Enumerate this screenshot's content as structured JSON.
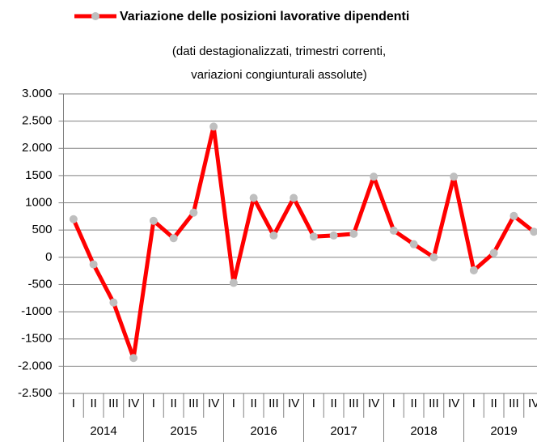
{
  "chart_data": {
    "type": "line",
    "subtitle": [
      "(dati destagionalizzati, trimestri correnti,",
      "variazioni congiunturali assolute)"
    ],
    "categories": [
      "I",
      "II",
      "III",
      "IV",
      "I",
      "II",
      "III",
      "IV",
      "I",
      "II",
      "III",
      "IV",
      "I",
      "II",
      "III",
      "IV",
      "I",
      "II",
      "III",
      "IV",
      "I",
      "II",
      "III",
      "IV"
    ],
    "years": [
      "2014",
      "2015",
      "2016",
      "2017",
      "2018",
      "2019"
    ],
    "series": [
      {
        "name": "Variazione delle posizioni lavorative dipendenti",
        "color": "#ff0000",
        "marker_color": "#bfbfbf",
        "values": [
          700,
          -130,
          -830,
          -1850,
          670,
          350,
          820,
          2400,
          -470,
          1090,
          400,
          1090,
          380,
          400,
          430,
          1480,
          490,
          240,
          0,
          1480,
          -240,
          80,
          760,
          470
        ]
      }
    ],
    "ylim": [
      -2500,
      3000
    ],
    "yticks": [
      {
        "value": -2500,
        "label": "-2.500"
      },
      {
        "value": -2000,
        "label": "-2.000"
      },
      -1500,
      -1000,
      -500,
      0,
      500,
      1000,
      1500,
      {
        "value": 2000,
        "label": "2.000"
      },
      {
        "value": 2500,
        "label": "2.500"
      },
      {
        "value": 3000,
        "label": "3.000"
      }
    ],
    "grid": true
  }
}
